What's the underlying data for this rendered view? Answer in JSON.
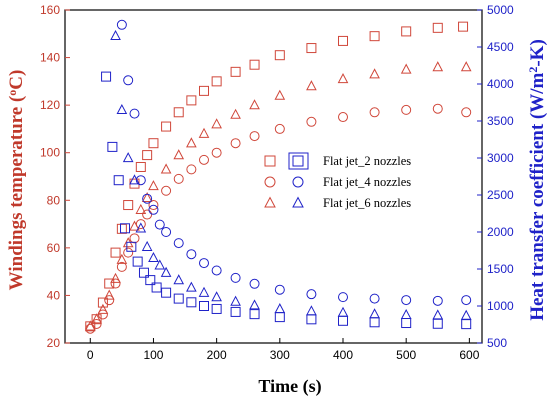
{
  "chart_data": {
    "type": "scatter",
    "xlabel": "Time (s)",
    "ylabel_left": "Windings temperature (°C)",
    "ylabel_right": "Heat transfer coefficient (W/m²·K)",
    "xlim": [
      -40,
      620
    ],
    "ylim_left": [
      20,
      160
    ],
    "ylim_right": [
      500,
      5000
    ],
    "x_ticks": [
      0,
      100,
      200,
      300,
      400,
      500,
      600
    ],
    "y_ticks_left": [
      20,
      40,
      60,
      80,
      100,
      120,
      140,
      160
    ],
    "y_ticks_right": [
      500,
      1000,
      1500,
      2000,
      2500,
      3000,
      3500,
      4000,
      4500,
      5000
    ],
    "grid": false,
    "legend_placement": "center-right",
    "legend": [
      {
        "label": "Flat jet_2 nozzles",
        "marker": "square"
      },
      {
        "label": "Flat jet_4 nozzles",
        "marker": "circle"
      },
      {
        "label": "Flat jet_6 nozzles",
        "marker": "triangle"
      }
    ],
    "series_temperature": [
      {
        "name": "Flat jet_2 nozzles",
        "marker": "square",
        "axis": "left",
        "points": [
          [
            0,
            27
          ],
          [
            10,
            30
          ],
          [
            20,
            37
          ],
          [
            30,
            45
          ],
          [
            40,
            58
          ],
          [
            50,
            68
          ],
          [
            60,
            78
          ],
          [
            70,
            87
          ],
          [
            80,
            94
          ],
          [
            90,
            99
          ],
          [
            100,
            104
          ],
          [
            120,
            111
          ],
          [
            140,
            117
          ],
          [
            160,
            122
          ],
          [
            180,
            126
          ],
          [
            200,
            130
          ],
          [
            230,
            134
          ],
          [
            260,
            137
          ],
          [
            300,
            141
          ],
          [
            350,
            144
          ],
          [
            400,
            147
          ],
          [
            450,
            149
          ],
          [
            500,
            151
          ],
          [
            550,
            152.5
          ],
          [
            590,
            153
          ]
        ]
      },
      {
        "name": "Flat jet_4 nozzles",
        "marker": "circle",
        "axis": "left",
        "points": [
          [
            0,
            26
          ],
          [
            10,
            28
          ],
          [
            20,
            32
          ],
          [
            30,
            38
          ],
          [
            40,
            45
          ],
          [
            50,
            52
          ],
          [
            60,
            58
          ],
          [
            70,
            64
          ],
          [
            80,
            70
          ],
          [
            90,
            74
          ],
          [
            100,
            78
          ],
          [
            120,
            84
          ],
          [
            140,
            89
          ],
          [
            160,
            93
          ],
          [
            180,
            97
          ],
          [
            200,
            100
          ],
          [
            230,
            104
          ],
          [
            260,
            107
          ],
          [
            300,
            110
          ],
          [
            350,
            113
          ],
          [
            400,
            115
          ],
          [
            450,
            117
          ],
          [
            500,
            118
          ],
          [
            550,
            118.5
          ],
          [
            595,
            117
          ]
        ]
      },
      {
        "name": "Flat jet_6 nozzles",
        "marker": "triangle",
        "axis": "left",
        "points": [
          [
            0,
            27
          ],
          [
            10,
            30
          ],
          [
            20,
            34
          ],
          [
            30,
            40
          ],
          [
            40,
            47
          ],
          [
            50,
            55
          ],
          [
            60,
            62
          ],
          [
            70,
            69
          ],
          [
            80,
            76
          ],
          [
            90,
            81
          ],
          [
            100,
            86
          ],
          [
            120,
            93
          ],
          [
            140,
            99
          ],
          [
            160,
            104
          ],
          [
            180,
            108
          ],
          [
            200,
            112
          ],
          [
            230,
            116
          ],
          [
            260,
            120
          ],
          [
            300,
            124
          ],
          [
            350,
            128
          ],
          [
            400,
            131
          ],
          [
            450,
            133
          ],
          [
            500,
            135
          ],
          [
            550,
            136
          ],
          [
            595,
            136
          ]
        ]
      }
    ],
    "series_htc": [
      {
        "name": "Flat jet_2 nozzles",
        "marker": "square",
        "axis": "right",
        "points": [
          [
            25,
            4100
          ],
          [
            35,
            3150
          ],
          [
            45,
            2700
          ],
          [
            55,
            2050
          ],
          [
            65,
            1800
          ],
          [
            75,
            1600
          ],
          [
            85,
            1450
          ],
          [
            95,
            1350
          ],
          [
            105,
            1250
          ],
          [
            120,
            1180
          ],
          [
            140,
            1100
          ],
          [
            160,
            1050
          ],
          [
            180,
            1000
          ],
          [
            200,
            960
          ],
          [
            230,
            920
          ],
          [
            260,
            890
          ],
          [
            300,
            850
          ],
          [
            350,
            820
          ],
          [
            400,
            800
          ],
          [
            450,
            780
          ],
          [
            500,
            770
          ],
          [
            550,
            760
          ],
          [
            595,
            755
          ]
        ]
      },
      {
        "name": "Flat jet_4 nozzles",
        "marker": "circle",
        "axis": "right",
        "points": [
          [
            50,
            4800
          ],
          [
            60,
            4050
          ],
          [
            70,
            3600
          ],
          [
            80,
            2700
          ],
          [
            90,
            2450
          ],
          [
            100,
            2300
          ],
          [
            110,
            2100
          ],
          [
            120,
            2000
          ],
          [
            140,
            1850
          ],
          [
            160,
            1700
          ],
          [
            180,
            1580
          ],
          [
            200,
            1480
          ],
          [
            230,
            1380
          ],
          [
            260,
            1300
          ],
          [
            300,
            1220
          ],
          [
            350,
            1160
          ],
          [
            400,
            1120
          ],
          [
            450,
            1100
          ],
          [
            500,
            1080
          ],
          [
            550,
            1070
          ],
          [
            595,
            1080
          ]
        ]
      },
      {
        "name": "Flat jet_6 nozzles",
        "marker": "triangle",
        "axis": "right",
        "points": [
          [
            40,
            4650
          ],
          [
            50,
            3650
          ],
          [
            60,
            3000
          ],
          [
            70,
            2700
          ],
          [
            80,
            2050
          ],
          [
            90,
            1800
          ],
          [
            100,
            1650
          ],
          [
            110,
            1550
          ],
          [
            120,
            1450
          ],
          [
            140,
            1350
          ],
          [
            160,
            1250
          ],
          [
            180,
            1180
          ],
          [
            200,
            1120
          ],
          [
            230,
            1060
          ],
          [
            260,
            1010
          ],
          [
            300,
            960
          ],
          [
            350,
            930
          ],
          [
            400,
            910
          ],
          [
            450,
            890
          ],
          [
            500,
            880
          ],
          [
            550,
            875
          ],
          [
            595,
            870
          ]
        ]
      }
    ],
    "colors": {
      "temperature": "#d0473a",
      "htc": "#1f22c8",
      "axis": "#000000"
    }
  }
}
